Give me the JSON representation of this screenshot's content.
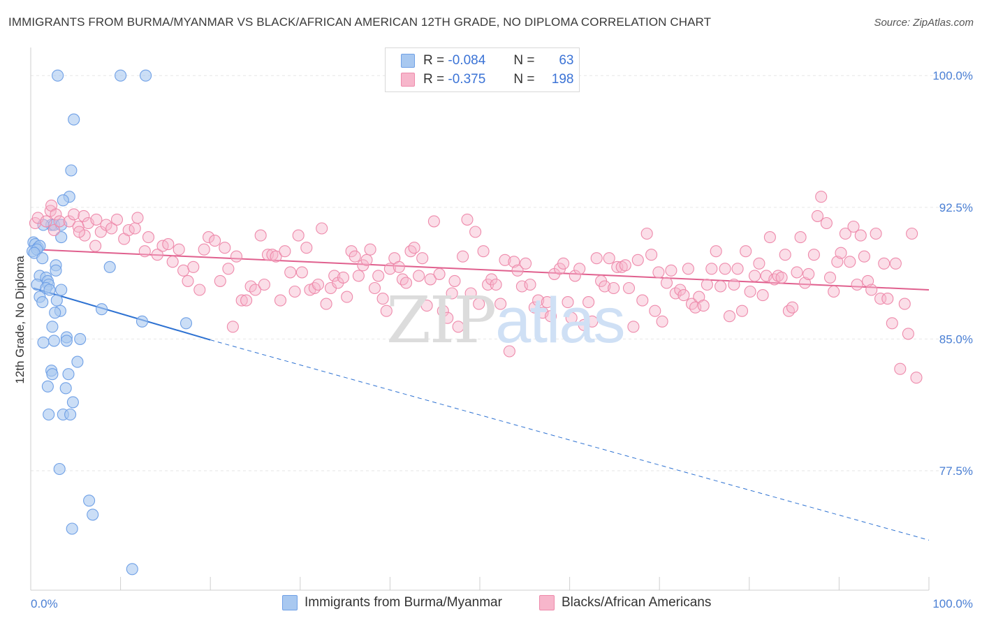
{
  "title": "IMMIGRANTS FROM BURMA/MYANMAR VS BLACK/AFRICAN AMERICAN 12TH GRADE, NO DIPLOMA CORRELATION CHART",
  "source": "Source: ZipAtlas.com",
  "watermark": {
    "zip": "ZIP",
    "atlas": "atlas"
  },
  "legend_top": [
    {
      "r_label": "R =",
      "r_value": "-0.084",
      "n_label": "N =",
      "n_value": "63",
      "color": "#a8c8f0"
    },
    {
      "r_label": "R =",
      "r_value": "-0.375",
      "n_label": "N =",
      "n_value": "198",
      "color": "#f7b6cb"
    }
  ],
  "legend_bottom": [
    {
      "label": "Immigrants from Burma/Myanmar",
      "color": "#a8c8f0"
    },
    {
      "label": "Blacks/African Americans",
      "color": "#f7b6cb"
    }
  ],
  "chart_data": {
    "type": "scatter",
    "title": "IMMIGRANTS FROM BURMA/MYANMAR VS BLACK/AFRICAN AMERICAN 12TH GRADE, NO DIPLOMA CORRELATION CHART",
    "xlabel": "",
    "ylabel": "12th Grade, No Diploma",
    "xlim": [
      0,
      100
    ],
    "ylim": [
      70.7,
      101.6
    ],
    "x_tick_labels": [
      "0.0%",
      "100.0%"
    ],
    "y_ticks": [
      77.5,
      85.0,
      92.5,
      100.0
    ],
    "y_tick_labels": [
      "77.5%",
      "85.0%",
      "92.5%",
      "100.0%"
    ],
    "grid": true,
    "series": [
      {
        "name": "Immigrants from Burma/Myanmar",
        "color": "#6fa0e6",
        "fill": "#a8c8f0",
        "trend": {
          "x0": 0.3,
          "y0": 87.9,
          "x1": 20,
          "y1": 84.95,
          "x_dash_end": 100,
          "y_dash_end": 73.55,
          "color": "#2e72d2"
        },
        "points": [
          [
            3.0,
            100.0
          ],
          [
            10.0,
            100.0
          ],
          [
            12.8,
            100.0
          ],
          [
            4.8,
            97.5
          ],
          [
            4.5,
            94.6
          ],
          [
            4.3,
            93.1
          ],
          [
            3.6,
            92.9
          ],
          [
            2.3,
            91.5
          ],
          [
            2.6,
            91.5
          ],
          [
            3.4,
            91.5
          ],
          [
            1.4,
            91.5
          ],
          [
            3.4,
            90.8
          ],
          [
            0.3,
            90.5
          ],
          [
            0.5,
            90.4
          ],
          [
            0.8,
            90.2
          ],
          [
            1.0,
            90.3
          ],
          [
            0.2,
            90.0
          ],
          [
            0.7,
            90.1
          ],
          [
            0.4,
            89.9
          ],
          [
            1.3,
            89.6
          ],
          [
            2.8,
            89.2
          ],
          [
            8.8,
            89.1
          ],
          [
            2.8,
            88.9
          ],
          [
            1.0,
            88.6
          ],
          [
            1.7,
            88.5
          ],
          [
            0.7,
            88.1
          ],
          [
            1.9,
            88.3
          ],
          [
            2.0,
            88.1
          ],
          [
            1.7,
            87.9
          ],
          [
            3.4,
            87.8
          ],
          [
            2.1,
            87.8
          ],
          [
            1.0,
            87.4
          ],
          [
            2.9,
            87.2
          ],
          [
            1.3,
            87.1
          ],
          [
            3.3,
            86.6
          ],
          [
            7.9,
            86.7
          ],
          [
            2.7,
            86.5
          ],
          [
            12.4,
            86.0
          ],
          [
            17.3,
            85.9
          ],
          [
            2.4,
            85.7
          ],
          [
            4.0,
            85.1
          ],
          [
            5.5,
            85.0
          ],
          [
            2.6,
            84.9
          ],
          [
            4.0,
            84.9
          ],
          [
            1.4,
            84.8
          ],
          [
            5.2,
            83.7
          ],
          [
            2.3,
            83.2
          ],
          [
            2.4,
            83.0
          ],
          [
            4.2,
            83.0
          ],
          [
            1.9,
            82.3
          ],
          [
            3.9,
            82.2
          ],
          [
            4.7,
            81.4
          ],
          [
            2.0,
            80.7
          ],
          [
            3.6,
            80.7
          ],
          [
            4.4,
            80.7
          ],
          [
            3.2,
            77.6
          ],
          [
            6.5,
            75.8
          ],
          [
            6.9,
            75.0
          ],
          [
            4.6,
            74.2
          ],
          [
            11.3,
            71.9
          ]
        ]
      },
      {
        "name": "Blacks/African Americans",
        "color": "#ee8aab",
        "fill": "#f7b6cb",
        "trend": {
          "x0": 0.3,
          "y0": 90.1,
          "x1": 100,
          "y1": 87.8,
          "color": "#e0608e"
        },
        "points": [
          [
            0.5,
            91.6
          ],
          [
            0.8,
            91.9
          ],
          [
            1.7,
            91.7
          ],
          [
            2.2,
            92.3
          ],
          [
            2.3,
            92.6
          ],
          [
            2.6,
            91.2
          ],
          [
            2.8,
            92.1
          ],
          [
            3.2,
            91.7
          ],
          [
            4.3,
            91.7
          ],
          [
            4.8,
            92.1
          ],
          [
            5.3,
            91.4
          ],
          [
            5.9,
            92.0
          ],
          [
            6.4,
            91.6
          ],
          [
            7.3,
            91.8
          ],
          [
            7.8,
            91.1
          ],
          [
            8.4,
            91.5
          ],
          [
            9.0,
            91.3
          ],
          [
            9.6,
            91.8
          ],
          [
            10.4,
            90.7
          ],
          [
            10.9,
            91.2
          ],
          [
            11.6,
            91.3
          ],
          [
            11.9,
            91.9
          ],
          [
            6.0,
            90.9
          ],
          [
            7.2,
            90.3
          ],
          [
            5.4,
            91.1
          ],
          [
            12.7,
            90.0
          ],
          [
            13.1,
            90.8
          ],
          [
            14.1,
            89.8
          ],
          [
            14.7,
            90.3
          ],
          [
            15.3,
            90.4
          ],
          [
            15.8,
            89.4
          ],
          [
            16.5,
            90.1
          ],
          [
            17.0,
            88.9
          ],
          [
            17.5,
            88.3
          ],
          [
            18.1,
            89.1
          ],
          [
            18.8,
            87.8
          ],
          [
            19.3,
            90.1
          ],
          [
            19.8,
            90.8
          ],
          [
            20.5,
            90.6
          ],
          [
            21.1,
            88.3
          ],
          [
            21.6,
            90.2
          ],
          [
            22.0,
            89.0
          ],
          [
            22.5,
            85.7
          ],
          [
            22.9,
            89.7
          ],
          [
            23.5,
            87.2
          ],
          [
            24.0,
            87.2
          ],
          [
            24.5,
            88.0
          ],
          [
            25.0,
            87.8
          ],
          [
            25.6,
            90.9
          ],
          [
            26.0,
            88.1
          ],
          [
            26.4,
            89.8
          ],
          [
            26.9,
            89.8
          ],
          [
            27.3,
            89.7
          ],
          [
            27.8,
            87.2
          ],
          [
            28.3,
            90.0
          ],
          [
            28.9,
            88.8
          ],
          [
            29.4,
            87.7
          ],
          [
            29.8,
            90.9
          ],
          [
            30.2,
            88.8
          ],
          [
            30.7,
            90.2
          ],
          [
            31.1,
            87.8
          ],
          [
            31.6,
            87.9
          ],
          [
            32.0,
            88.1
          ],
          [
            32.4,
            91.3
          ],
          [
            32.9,
            87.0
          ],
          [
            33.4,
            87.9
          ],
          [
            33.8,
            88.6
          ],
          [
            34.2,
            88.2
          ],
          [
            34.8,
            88.5
          ],
          [
            35.2,
            87.4
          ],
          [
            35.7,
            90.0
          ],
          [
            36.1,
            89.7
          ],
          [
            36.5,
            88.6
          ],
          [
            37.0,
            89.2
          ],
          [
            37.4,
            89.5
          ],
          [
            37.8,
            90.1
          ],
          [
            38.3,
            87.9
          ],
          [
            38.7,
            88.6
          ],
          [
            39.2,
            87.3
          ],
          [
            39.6,
            86.6
          ],
          [
            40.0,
            89.0
          ],
          [
            40.5,
            89.6
          ],
          [
            41.0,
            89.1
          ],
          [
            41.4,
            88.4
          ],
          [
            41.8,
            88.2
          ],
          [
            42.3,
            90.0
          ],
          [
            42.7,
            90.2
          ],
          [
            43.2,
            88.6
          ],
          [
            43.6,
            89.6
          ],
          [
            44.1,
            86.9
          ],
          [
            44.5,
            88.4
          ],
          [
            44.9,
            91.7
          ],
          [
            45.5,
            88.7
          ],
          [
            45.9,
            86.6
          ],
          [
            46.4,
            86.2
          ],
          [
            46.9,
            87.6
          ],
          [
            47.2,
            88.3
          ],
          [
            47.6,
            85.7
          ],
          [
            48.1,
            89.7
          ],
          [
            48.6,
            91.8
          ],
          [
            49.0,
            87.6
          ],
          [
            49.5,
            91.1
          ],
          [
            49.9,
            87.0
          ],
          [
            50.4,
            90.0
          ],
          [
            50.9,
            88.1
          ],
          [
            51.3,
            88.4
          ],
          [
            51.8,
            88.1
          ],
          [
            52.3,
            87.0
          ],
          [
            52.8,
            89.5
          ],
          [
            53.3,
            84.3
          ],
          [
            53.8,
            89.4
          ],
          [
            54.2,
            88.9
          ],
          [
            54.7,
            88.0
          ],
          [
            55.1,
            89.3
          ],
          [
            55.6,
            88.1
          ],
          [
            56.1,
            86.8
          ],
          [
            56.5,
            87.2
          ],
          [
            57.0,
            86.5
          ],
          [
            57.5,
            87.1
          ],
          [
            57.9,
            86.3
          ],
          [
            58.3,
            88.7
          ],
          [
            58.9,
            89.0
          ],
          [
            59.3,
            89.3
          ],
          [
            59.8,
            87.1
          ],
          [
            60.2,
            86.2
          ],
          [
            60.6,
            88.6
          ],
          [
            61.1,
            89.0
          ],
          [
            61.6,
            85.8
          ],
          [
            62.1,
            87.1
          ],
          [
            62.5,
            86.0
          ],
          [
            63.0,
            89.6
          ],
          [
            63.5,
            88.3
          ],
          [
            63.9,
            88.0
          ],
          [
            64.4,
            89.6
          ],
          [
            64.9,
            87.9
          ],
          [
            65.3,
            89.1
          ],
          [
            65.8,
            89.1
          ],
          [
            66.2,
            89.2
          ],
          [
            66.6,
            87.9
          ],
          [
            67.1,
            85.7
          ],
          [
            67.6,
            89.5
          ],
          [
            68.1,
            87.2
          ],
          [
            68.6,
            91.0
          ],
          [
            69.1,
            89.8
          ],
          [
            69.5,
            86.6
          ],
          [
            69.9,
            88.8
          ],
          [
            70.3,
            86.0
          ],
          [
            70.8,
            88.2
          ],
          [
            71.3,
            88.9
          ],
          [
            71.8,
            87.6
          ],
          [
            72.3,
            87.8
          ],
          [
            72.7,
            87.5
          ],
          [
            73.2,
            89.0
          ],
          [
            73.6,
            87.0
          ],
          [
            74.0,
            86.8
          ],
          [
            74.4,
            87.4
          ],
          [
            74.9,
            86.9
          ],
          [
            75.3,
            88.1
          ],
          [
            75.8,
            89.0
          ],
          [
            76.3,
            90.0
          ],
          [
            76.8,
            88.0
          ],
          [
            77.3,
            89.0
          ],
          [
            77.8,
            86.3
          ],
          [
            78.3,
            88.1
          ],
          [
            78.7,
            89.0
          ],
          [
            79.2,
            86.6
          ],
          [
            79.6,
            90.0
          ],
          [
            80.1,
            87.7
          ],
          [
            80.6,
            88.6
          ],
          [
            81.1,
            89.3
          ],
          [
            81.5,
            87.5
          ],
          [
            81.9,
            88.6
          ],
          [
            82.3,
            90.8
          ],
          [
            82.8,
            88.4
          ],
          [
            83.2,
            88.6
          ],
          [
            83.6,
            88.5
          ],
          [
            84.0,
            89.8
          ],
          [
            84.4,
            86.6
          ],
          [
            84.8,
            86.8
          ],
          [
            85.3,
            88.8
          ],
          [
            85.7,
            90.8
          ],
          [
            86.2,
            88.2
          ],
          [
            86.6,
            88.7
          ],
          [
            87.2,
            89.8
          ],
          [
            87.6,
            92.0
          ],
          [
            88.0,
            93.1
          ],
          [
            88.6,
            91.6
          ],
          [
            89.0,
            88.5
          ],
          [
            89.4,
            87.7
          ],
          [
            89.8,
            89.4
          ],
          [
            90.2,
            89.9
          ],
          [
            90.7,
            91.0
          ],
          [
            91.2,
            89.4
          ],
          [
            91.6,
            91.4
          ],
          [
            92.0,
            88.1
          ],
          [
            92.4,
            90.9
          ],
          [
            92.8,
            89.7
          ],
          [
            93.2,
            88.3
          ],
          [
            93.6,
            87.8
          ],
          [
            94.1,
            91.0
          ],
          [
            94.6,
            87.3
          ],
          [
            95.0,
            89.3
          ],
          [
            95.4,
            87.3
          ],
          [
            95.9,
            85.9
          ],
          [
            96.3,
            89.3
          ],
          [
            96.8,
            83.3
          ],
          [
            97.3,
            87.0
          ],
          [
            97.7,
            85.3
          ],
          [
            98.1,
            91.0
          ],
          [
            98.6,
            82.8
          ]
        ]
      }
    ]
  }
}
